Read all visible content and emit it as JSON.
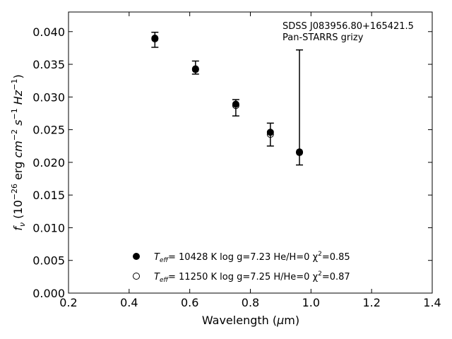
{
  "chart_data": {
    "type": "scatter",
    "annotation": {
      "object": "SDSS J083956.80+165421.5",
      "survey": "Pan-STARRS grizy"
    },
    "xlabel": "Wavelength (μm)",
    "ylabel": "f_ν (10^-26 erg cm^-2 s^-1 Hz^-1)",
    "xlim": [
      0.2,
      1.4
    ],
    "ylim": [
      0.0,
      0.043
    ],
    "x_ticks": [
      0.2,
      0.4,
      0.6,
      0.8,
      1.0,
      1.2,
      1.4
    ],
    "x_tick_labels": [
      "0.2",
      "0.4",
      "0.6",
      "0.8",
      "1.0",
      "1.2",
      "1.4"
    ],
    "y_ticks": [
      0.0,
      0.005,
      0.01,
      0.015,
      0.02,
      0.025,
      0.03,
      0.035,
      0.04
    ],
    "y_tick_labels": [
      "0.000",
      "0.005",
      "0.010",
      "0.015",
      "0.020",
      "0.025",
      "0.030",
      "0.035",
      "0.040"
    ],
    "grid": false,
    "legend_position": "bottom-center",
    "observed": {
      "x": [
        0.485,
        0.619,
        0.752,
        0.866,
        0.962
      ],
      "y": [
        0.0389,
        0.0342,
        0.0287,
        0.0244,
        0.0216
      ],
      "yerr_low": [
        0.0376,
        0.0335,
        0.0271,
        0.0225,
        0.0196
      ],
      "yerr_high": [
        0.0399,
        0.0355,
        0.0296,
        0.026,
        0.0372
      ]
    },
    "series": [
      {
        "name": "T_eff= 10428 K  log g=7.23  He/H=0  χ²=0.85",
        "teff_label": "= 10428 K  log g=7.23  He/H=0  χ",
        "chi2_value": "=0.85",
        "marker": "filled-circle",
        "x": [
          0.485,
          0.619,
          0.752,
          0.866,
          0.962
        ],
        "y": [
          0.039,
          0.0343,
          0.0289,
          0.0246,
          0.0216
        ]
      },
      {
        "name": "T_eff= 11250 K  log g=7.25  H/He=0  χ²=0.87",
        "teff_label": "= 11250 K  log g=7.25  H/He=0  χ",
        "chi2_value": "=0.87",
        "marker": "open-circle",
        "x": [
          0.485,
          0.619,
          0.752,
          0.866,
          0.962
        ],
        "y": [
          0.0389,
          0.0342,
          0.0287,
          0.0243,
          0.0215
        ]
      }
    ],
    "colors": {
      "marker": "#000000",
      "axis": "#000000",
      "background": "#ffffff"
    }
  }
}
